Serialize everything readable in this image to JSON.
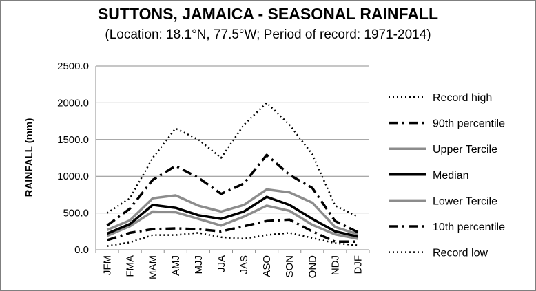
{
  "chart_data": {
    "type": "line",
    "title": "SUTTONS, JAMAICA - SEASONAL RAINFALL",
    "subtitle": "(Location: 18.1°N, 77.5°W; Period of record: 1971-2014)",
    "xlabel": "",
    "ylabel": "RAINFALL (mm)",
    "ylim": [
      0,
      2500
    ],
    "y_ticks": [
      "0.0",
      "500.0",
      "1000.0",
      "1500.0",
      "2000.0",
      "2500.0"
    ],
    "grid": "horizontal",
    "legend_position": "right",
    "categories": [
      "JFM",
      "FMA",
      "MAM",
      "AMJ",
      "MJJ",
      "JJA",
      "JAS",
      "ASO",
      "SON",
      "OND",
      "NDJ",
      "DJF"
    ],
    "series": [
      {
        "name": "Record high",
        "color": "#000000",
        "style": "dotted",
        "values": [
          500,
          700,
          1250,
          1650,
          1500,
          1250,
          1700,
          2000,
          1700,
          1300,
          600,
          450
        ]
      },
      {
        "name": "90th percentile",
        "color": "#000000",
        "style": "dashdot",
        "values": [
          330,
          560,
          950,
          1140,
          980,
          760,
          900,
          1290,
          1020,
          840,
          390,
          240
        ]
      },
      {
        "name": "Upper Tercile",
        "color": "#8c8c8c",
        "style": "solid",
        "values": [
          270,
          400,
          700,
          740,
          600,
          520,
          610,
          820,
          780,
          640,
          310,
          210
        ]
      },
      {
        "name": "Median",
        "color": "#000000",
        "style": "solid",
        "values": [
          220,
          350,
          610,
          570,
          470,
          420,
          520,
          720,
          610,
          420,
          250,
          180
        ]
      },
      {
        "name": "Lower Tercile",
        "color": "#8c8c8c",
        "style": "solid",
        "values": [
          190,
          320,
          520,
          510,
          420,
          330,
          450,
          600,
          530,
          340,
          210,
          150
        ]
      },
      {
        "name": "10th percentile",
        "color": "#000000",
        "style": "dashdot",
        "values": [
          130,
          230,
          280,
          290,
          280,
          250,
          320,
          390,
          410,
          250,
          110,
          110
        ]
      },
      {
        "name": "Record low",
        "color": "#000000",
        "style": "dotted",
        "values": [
          50,
          100,
          200,
          200,
          230,
          170,
          150,
          200,
          230,
          160,
          90,
          60
        ]
      }
    ]
  }
}
